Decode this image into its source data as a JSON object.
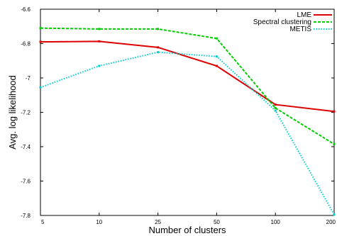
{
  "chart_data": {
    "type": "line",
    "title": "",
    "xlabel": "Number of clusters",
    "ylabel": "Avg. log likelihood",
    "categories": [
      "5",
      "10",
      "25",
      "50",
      "100",
      "200"
    ],
    "ylim": [
      -7.8,
      -6.6
    ],
    "yticks": [
      "-6.6",
      "-6.8",
      "-7",
      "-7.2",
      "-7.4",
      "-7.6",
      "-7.8"
    ],
    "ytick_values": [
      -6.6,
      -6.8,
      -7.0,
      -7.2,
      -7.4,
      -7.6,
      -7.8
    ],
    "grid": false,
    "legend_position": "top-right",
    "series": [
      {
        "name": "LME",
        "color": "#dd0000",
        "dash": "solid",
        "values": [
          -6.79,
          -6.787,
          -6.822,
          -6.93,
          -7.155,
          -7.195
        ]
      },
      {
        "name": "Spectral clustering",
        "color": "#00cc00",
        "dash": "dashed",
        "values": [
          -6.71,
          -6.715,
          -6.715,
          -6.77,
          -7.175,
          -7.385
        ]
      },
      {
        "name": "METIS",
        "color": "#00cccc",
        "dash": "dotted",
        "values": [
          -7.055,
          -6.93,
          -6.85,
          -6.875,
          -7.19,
          -7.795
        ]
      }
    ]
  }
}
